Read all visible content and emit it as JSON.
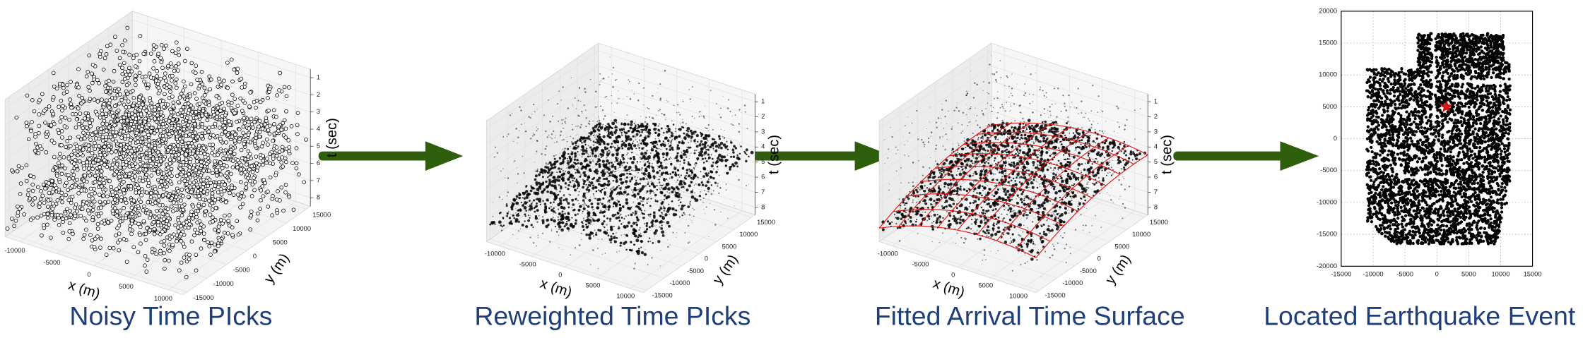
{
  "panels": [
    {
      "caption": "Noisy Time PIcks",
      "x_label": "x (m)",
      "y_label": "y (m)",
      "t_label": "t (sec)",
      "xticks": [
        -10000,
        -5000,
        0,
        5000,
        10000
      ],
      "yticks": [
        -15000,
        -10000,
        -5000,
        0,
        5000,
        10000,
        15000
      ],
      "tticks": [
        1,
        2,
        3,
        4,
        5,
        6,
        7,
        8
      ]
    },
    {
      "caption": "Reweighted Time PIcks",
      "x_label": "x (m)",
      "y_label": "y (m)",
      "t_label": "t (sec)",
      "xticks": [
        -10000,
        -5000,
        0,
        5000,
        10000
      ],
      "yticks": [
        -15000,
        -10000,
        -5000,
        0,
        5000,
        10000,
        15000
      ],
      "tticks": [
        1,
        2,
        3,
        4,
        5,
        6,
        7,
        8
      ]
    },
    {
      "caption": "Fitted Arrival Time Surface",
      "x_label": "x (m)",
      "y_label": "y (m)",
      "t_label": "t (sec)",
      "xticks": [
        -10000,
        -5000,
        0,
        5000,
        10000
      ],
      "yticks": [
        -15000,
        -10000,
        -5000,
        0,
        5000,
        10000,
        15000
      ],
      "tticks": [
        1,
        2,
        3,
        4,
        5,
        6,
        7,
        8
      ]
    },
    {
      "caption": "Located Earthquake Event",
      "xlim": [
        -15000,
        15000
      ],
      "ylim": [
        -20000,
        20000
      ],
      "xticks": [
        -15000,
        -10000,
        -5000,
        0,
        5000,
        10000,
        15000
      ],
      "yticks": [
        -20000,
        -15000,
        -10000,
        -5000,
        0,
        5000,
        10000,
        15000,
        20000
      ],
      "event": {
        "x": 1500,
        "y": 5000
      }
    }
  ]
}
